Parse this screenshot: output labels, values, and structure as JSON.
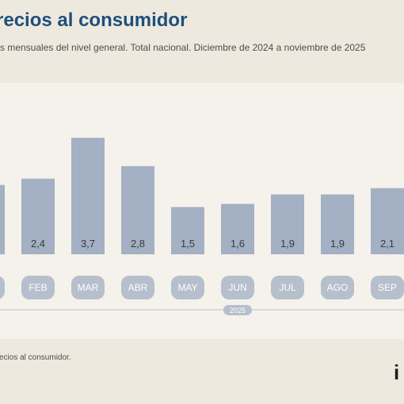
{
  "header": {
    "title": "recios al consumidor",
    "subtitle": "s mensuales del nivel general. Total nacional. Diciembre de 2024 a noviembre de 2025"
  },
  "footer": {
    "source": "ecios al consumidor.",
    "logo_text": "i"
  },
  "colors": {
    "bar": "#a4b0c3",
    "pill": "#b6bfcc",
    "accent_title": "#1d4f7c",
    "background": "#eee9df"
  },
  "chart_data": {
    "type": "bar",
    "title": "recios al consumidor",
    "subtitle": "s mensuales del nivel general. Total nacional. Diciembre de 2024 a noviembre de 2025",
    "categories": [
      "",
      "FEB",
      "MAR",
      "ABR",
      "MAY",
      "JUN",
      "JUL",
      "AGO",
      "SEP"
    ],
    "values": [
      2.2,
      2.4,
      3.7,
      2.8,
      1.5,
      1.6,
      1.9,
      1.9,
      2.1
    ],
    "value_labels": [
      "",
      "2,4",
      "3,7",
      "2,8",
      "1,5",
      "1,6",
      "1,9",
      "1,9",
      "2,1"
    ],
    "year_label": "2025",
    "ylim": [
      0,
      4.0
    ],
    "grid": false,
    "xlabel": "",
    "ylabel": ""
  }
}
